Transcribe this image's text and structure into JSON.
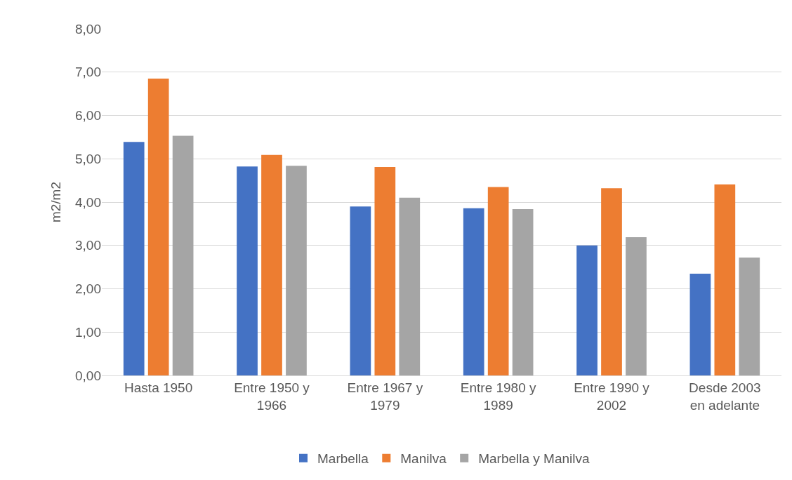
{
  "chart_data": {
    "type": "bar",
    "ylabel": "m2/m2",
    "categories": [
      "Hasta 1950",
      "Entre 1950 y 1966",
      "Entre 1967 y 1979",
      "Entre 1980 y 1989",
      "Entre 1990 y 2002",
      "Desde 2003 en adelante"
    ],
    "series": [
      {
        "name": "Marbella",
        "color": "#4472c4",
        "values": [
          5.39,
          4.82,
          3.9,
          3.86,
          3.0,
          2.35
        ]
      },
      {
        "name": "Manilva",
        "color": "#ed7d31",
        "values": [
          6.85,
          5.09,
          4.81,
          4.35,
          4.32,
          4.41
        ]
      },
      {
        "name": "Marbella y Manilva",
        "color": "#a5a5a5",
        "values": [
          5.53,
          4.84,
          4.1,
          3.84,
          3.19,
          2.72
        ]
      }
    ],
    "ylim": [
      0,
      8
    ],
    "yticks": [
      {
        "value": 0,
        "label": "0,00"
      },
      {
        "value": 1,
        "label": "1,00"
      },
      {
        "value": 2,
        "label": "2,00"
      },
      {
        "value": 3,
        "label": "3,00"
      },
      {
        "value": 4,
        "label": "4,00"
      },
      {
        "value": 5,
        "label": "5,00"
      },
      {
        "value": 6,
        "label": "6,00"
      },
      {
        "value": 7,
        "label": "7,00"
      },
      {
        "value": 8,
        "label": "8,00"
      }
    ],
    "grid": "y",
    "legend": "bottom"
  }
}
